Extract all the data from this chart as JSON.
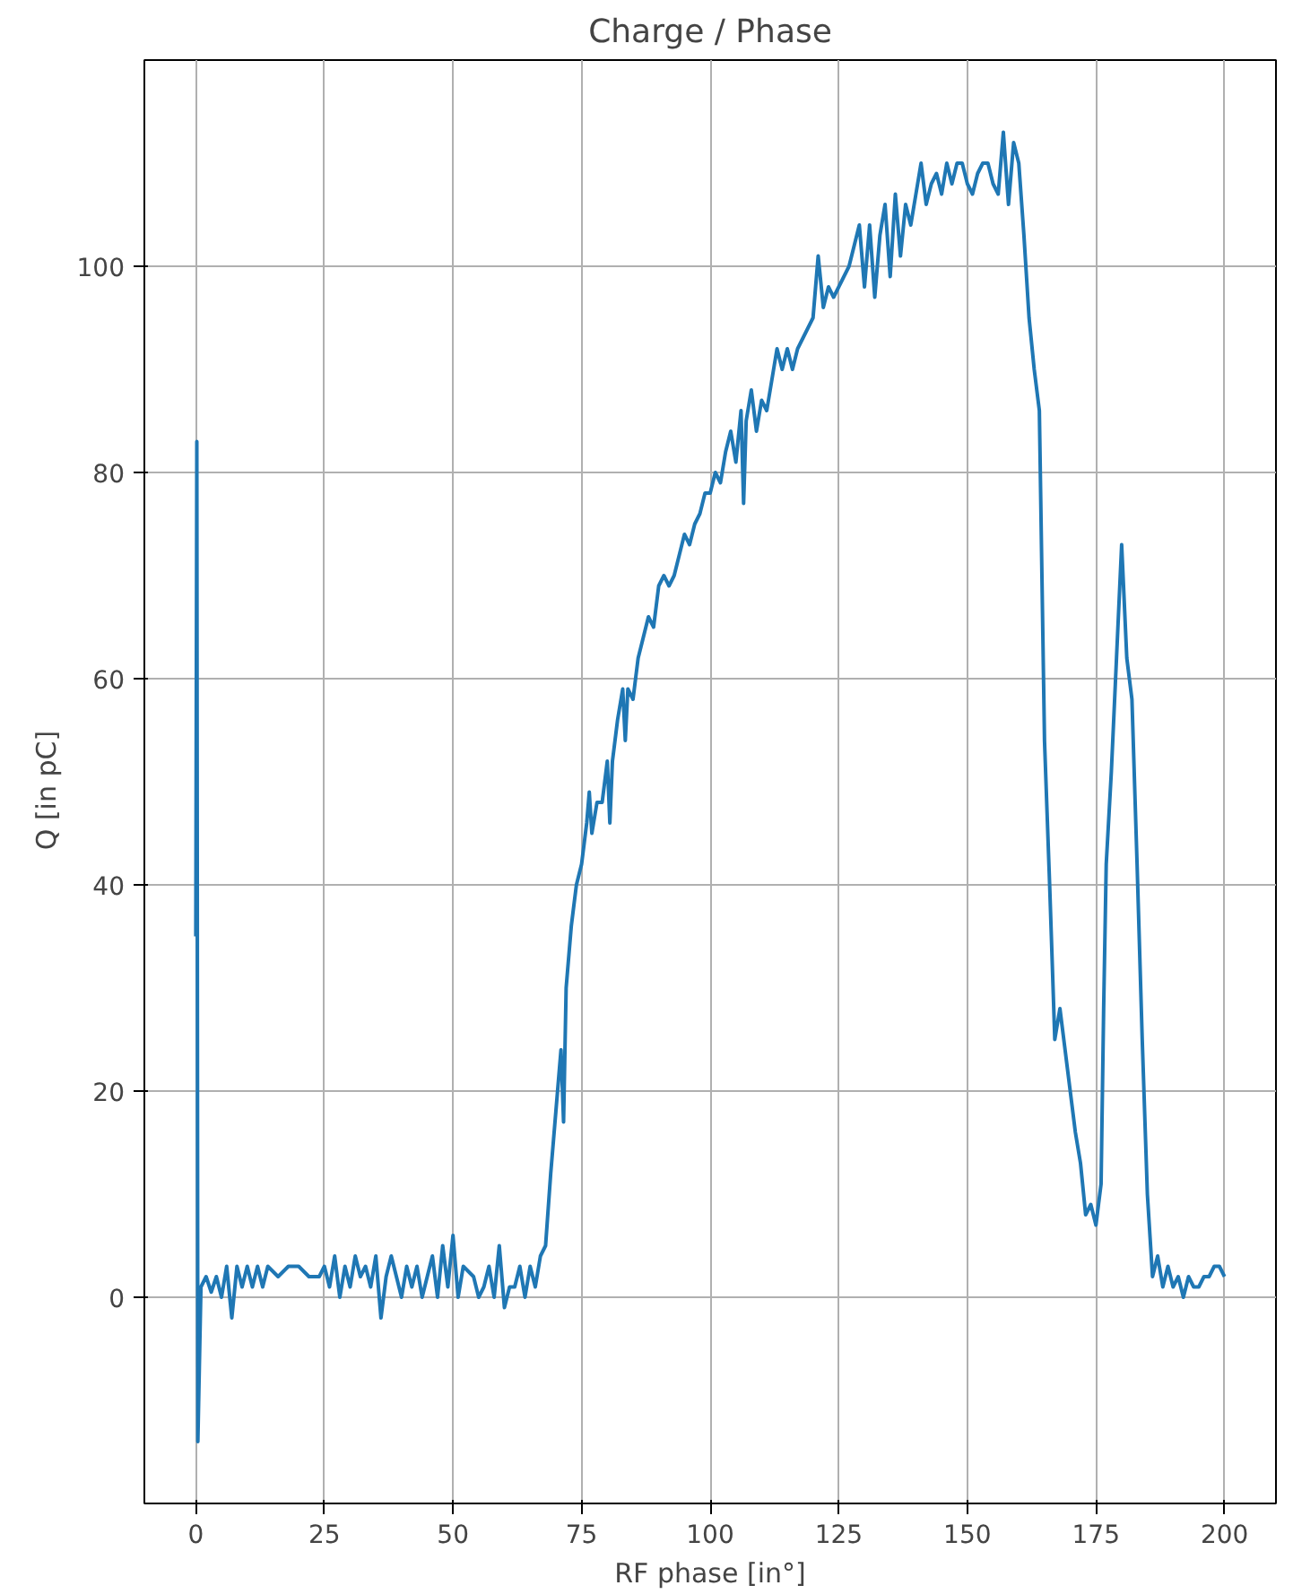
{
  "chart_data": {
    "type": "line",
    "title": "Charge / Phase",
    "xlabel": "RF phase [in°]",
    "ylabel": "Q  [in  pC]",
    "xlim": [
      -10,
      210
    ],
    "ylim": [
      -20,
      120
    ],
    "xticks": [
      0,
      25,
      50,
      75,
      100,
      125,
      150,
      175,
      200
    ],
    "yticks": [
      0,
      20,
      40,
      60,
      80,
      100
    ],
    "grid": true,
    "series": [
      {
        "color": "#1f77b4",
        "x": [
          0,
          0.2,
          0.4,
          1,
          2,
          3,
          4,
          5,
          6,
          7,
          8,
          9,
          10,
          11,
          12,
          13,
          14,
          16,
          18,
          20,
          22,
          24,
          25,
          26,
          27,
          28,
          29,
          30,
          31,
          32,
          33,
          34,
          35,
          36,
          37,
          38,
          39,
          40,
          41,
          42,
          43,
          44,
          45,
          46,
          47,
          48,
          49,
          50,
          51,
          52,
          54,
          55,
          56,
          57,
          58,
          59,
          60,
          61,
          62,
          63,
          64,
          65,
          66,
          67,
          68,
          69,
          70,
          71,
          71.5,
          72,
          73,
          74,
          75,
          76,
          76.5,
          77,
          78,
          79,
          80,
          80.5,
          81,
          82,
          83,
          83.5,
          84,
          85,
          86,
          87,
          88,
          89,
          90,
          91,
          92,
          93,
          94,
          95,
          96,
          97,
          98,
          99,
          100,
          101,
          102,
          103,
          104,
          105,
          106,
          106.5,
          107,
          108,
          109,
          110,
          111,
          112,
          113,
          114,
          115,
          116,
          117,
          118,
          119,
          120,
          121,
          122,
          123,
          124,
          125,
          126,
          127,
          128,
          129,
          130,
          131,
          132,
          133,
          134,
          135,
          136,
          137,
          138,
          139,
          140,
          141,
          142,
          143,
          144,
          145,
          146,
          147,
          148,
          149,
          150,
          151,
          152,
          153,
          154,
          155,
          156,
          157,
          158,
          159,
          160,
          161,
          162,
          163,
          164,
          164.5,
          165,
          166,
          167,
          168,
          169,
          170,
          171,
          172,
          173,
          174,
          175,
          176,
          176.5,
          177,
          178,
          179,
          180,
          181,
          182,
          183,
          184,
          185,
          186,
          187,
          188,
          189,
          190,
          191,
          192,
          193,
          194,
          195,
          196,
          197,
          198,
          199,
          200
        ],
        "values": [
          35,
          83,
          -14,
          1,
          2,
          0.5,
          2,
          0,
          3,
          -2,
          3,
          1,
          3,
          1,
          3,
          1,
          3,
          2,
          3,
          3,
          2,
          2,
          3,
          1,
          4,
          0,
          3,
          1,
          4,
          2,
          3,
          1,
          4,
          -2,
          2,
          4,
          2,
          0,
          3,
          1,
          3,
          0,
          2,
          4,
          0,
          5,
          1,
          6,
          0,
          3,
          2,
          0,
          1,
          3,
          0,
          5,
          -1,
          1,
          1,
          3,
          0,
          3,
          1,
          4,
          5,
          12,
          18,
          24,
          17,
          30,
          36,
          40,
          42,
          46,
          49,
          45,
          48,
          48,
          52,
          46,
          52,
          56,
          59,
          54,
          59,
          58,
          62,
          64,
          66,
          65,
          69,
          70,
          69,
          70,
          72,
          74,
          73,
          75,
          76,
          78,
          78,
          80,
          79,
          82,
          84,
          81,
          86,
          77,
          85,
          88,
          84,
          87,
          86,
          89,
          92,
          90,
          92,
          90,
          92,
          93,
          94,
          95,
          101,
          96,
          98,
          97,
          98,
          99,
          100,
          102,
          104,
          98,
          104,
          97,
          103,
          106,
          99,
          107,
          101,
          106,
          104,
          107,
          110,
          106,
          108,
          109,
          107,
          110,
          108,
          110,
          110,
          108,
          107,
          109,
          110,
          110,
          108,
          107,
          113,
          106,
          112,
          110,
          103,
          95,
          90,
          86,
          70,
          54,
          40,
          25,
          28,
          24,
          20,
          16,
          13,
          8,
          9,
          7,
          11,
          28,
          42,
          51,
          62,
          73,
          62,
          58,
          42,
          25,
          10,
          2,
          4,
          1,
          3,
          1,
          2,
          0,
          2,
          1,
          1,
          2,
          2,
          3,
          3,
          2
        ]
      }
    ]
  }
}
